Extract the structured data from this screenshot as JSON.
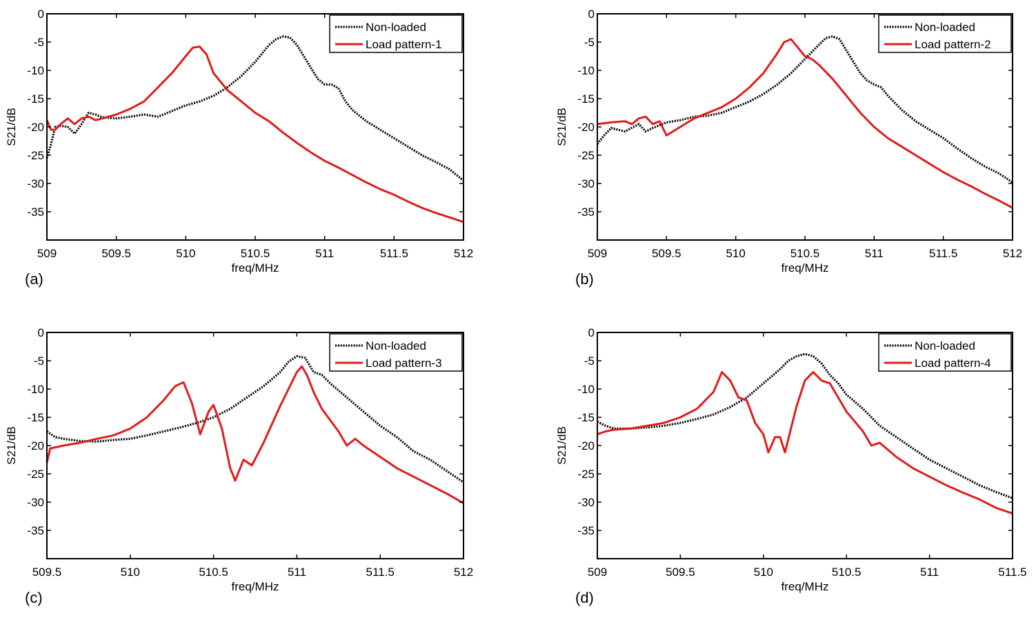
{
  "colors": {
    "non_loaded": "#111111",
    "loaded": "#e01b1b",
    "axis": "#000000"
  },
  "chart_data": [
    {
      "type": "line",
      "panel_label": "(a)",
      "xlabel": "freq/MHz",
      "ylabel": "S21/dB",
      "xlim": [
        509,
        512
      ],
      "ylim": [
        -40,
        0
      ],
      "xticks": [
        509,
        509.5,
        510,
        510.5,
        511,
        511.5,
        512
      ],
      "xtick_labels": [
        "509",
        "509.5",
        "510",
        "510.5",
        "511",
        "511.5",
        "512"
      ],
      "yticks": [
        0,
        -5,
        -10,
        -15,
        -20,
        -25,
        -30,
        -35
      ],
      "ytick_labels": [
        "0",
        "-5",
        "-10",
        "-15",
        "-20",
        "-25",
        "-30",
        "-35"
      ],
      "legend": [
        "Non-loaded",
        "Load pattern-1"
      ],
      "series": [
        {
          "name": "Non-loaded",
          "style": "dotted",
          "x": [
            509,
            509.03,
            509.06,
            509.1,
            509.15,
            509.2,
            509.25,
            509.3,
            509.35,
            509.4,
            509.5,
            509.6,
            509.7,
            509.8,
            509.9,
            510,
            510.1,
            510.2,
            510.3,
            510.4,
            510.5,
            510.6,
            510.65,
            510.7,
            510.75,
            510.8,
            510.85,
            510.9,
            510.95,
            511,
            511.05,
            511.1,
            511.15,
            511.2,
            511.3,
            511.4,
            511.5,
            511.6,
            511.7,
            511.8,
            511.9,
            512
          ],
          "y": [
            -25.5,
            -23,
            -20,
            -19.8,
            -20,
            -21.2,
            -19.5,
            -17.5,
            -17.8,
            -18.3,
            -18.5,
            -18.2,
            -17.8,
            -18.2,
            -17.2,
            -16.2,
            -15.5,
            -14.5,
            -13,
            -11,
            -8.5,
            -5.5,
            -4.5,
            -4,
            -4.2,
            -5.5,
            -7.5,
            -9.5,
            -11.5,
            -12.5,
            -12.5,
            -13.2,
            -15.5,
            -17,
            -19,
            -20.5,
            -22,
            -23.5,
            -25,
            -26.2,
            -27.5,
            -29.5
          ]
        },
        {
          "name": "Load pattern-1",
          "style": "solid",
          "x": [
            509,
            509.03,
            509.06,
            509.1,
            509.15,
            509.2,
            509.25,
            509.3,
            509.35,
            509.4,
            509.5,
            509.6,
            509.7,
            509.8,
            509.9,
            510,
            510.05,
            510.1,
            510.15,
            510.2,
            510.3,
            510.4,
            510.5,
            510.6,
            510.7,
            510.8,
            510.9,
            511,
            511.1,
            511.2,
            511.3,
            511.4,
            511.5,
            511.6,
            511.7,
            511.8,
            511.9,
            512
          ],
          "y": [
            -18.8,
            -20.5,
            -20.5,
            -19.5,
            -18.5,
            -19.5,
            -18.5,
            -18.2,
            -18.8,
            -18.5,
            -17.8,
            -16.8,
            -15.5,
            -13,
            -10.5,
            -7.5,
            -6,
            -5.8,
            -7.2,
            -10.5,
            -13.5,
            -15.5,
            -17.5,
            -19,
            -21,
            -22.8,
            -24.5,
            -26,
            -27.2,
            -28.5,
            -29.8,
            -31,
            -32,
            -33.2,
            -34.3,
            -35.2,
            -36,
            -36.8
          ]
        }
      ]
    },
    {
      "type": "line",
      "panel_label": "(b)",
      "xlabel": "freq/MHz",
      "ylabel": "S21/dB",
      "xlim": [
        509,
        512
      ],
      "ylim": [
        -40,
        0
      ],
      "xticks": [
        509,
        509.5,
        510,
        510.5,
        511,
        511.5,
        512
      ],
      "xtick_labels": [
        "509",
        "509.5",
        "510",
        "510.5",
        "511",
        "511.5",
        "512"
      ],
      "yticks": [
        0,
        -5,
        -10,
        -15,
        -20,
        -25,
        -30,
        -35
      ],
      "ytick_labels": [
        "0",
        "-5",
        "-10",
        "-15",
        "-20",
        "-25",
        "-30",
        "-35"
      ],
      "legend": [
        "Non-loaded",
        "Load pattern-2"
      ],
      "series": [
        {
          "name": "Non-loaded",
          "style": "dotted",
          "x": [
            509,
            509.05,
            509.1,
            509.2,
            509.3,
            509.35,
            509.4,
            509.5,
            509.6,
            509.7,
            509.8,
            509.9,
            510,
            510.1,
            510.2,
            510.3,
            510.4,
            510.5,
            510.6,
            510.65,
            510.7,
            510.75,
            510.8,
            510.85,
            510.9,
            510.95,
            511,
            511.05,
            511.1,
            511.2,
            511.3,
            511.4,
            511.5,
            511.6,
            511.7,
            511.8,
            511.9,
            512
          ],
          "y": [
            -23,
            -21.5,
            -20.2,
            -20.8,
            -19.5,
            -20.8,
            -20.2,
            -19.2,
            -18.8,
            -18.2,
            -18,
            -17.5,
            -16.5,
            -15.5,
            -14.2,
            -12.5,
            -10.5,
            -8,
            -5.5,
            -4.3,
            -4,
            -4.5,
            -6.5,
            -8.5,
            -10.5,
            -11.8,
            -12.5,
            -13,
            -14.5,
            -17,
            -19,
            -20.5,
            -22,
            -23.8,
            -25.5,
            -27,
            -28.2,
            -29.8
          ]
        },
        {
          "name": "Load pattern-2",
          "style": "solid",
          "x": [
            509,
            509.1,
            509.2,
            509.25,
            509.3,
            509.35,
            509.4,
            509.45,
            509.5,
            509.6,
            509.7,
            509.8,
            509.9,
            510,
            510.1,
            510.2,
            510.3,
            510.35,
            510.4,
            510.45,
            510.5,
            510.55,
            510.6,
            510.7,
            510.8,
            510.9,
            511,
            511.1,
            511.2,
            511.3,
            511.4,
            511.5,
            511.6,
            511.7,
            511.8,
            511.9,
            512
          ],
          "y": [
            -19.5,
            -19.2,
            -19,
            -19.5,
            -18.5,
            -18.2,
            -19.5,
            -19,
            -21.5,
            -20,
            -18.5,
            -17.5,
            -16.5,
            -15,
            -13,
            -10.5,
            -7,
            -5,
            -4.5,
            -6,
            -7.5,
            -8,
            -9,
            -11.5,
            -14.5,
            -17.5,
            -20,
            -22,
            -23.5,
            -25,
            -26.5,
            -28,
            -29.3,
            -30.5,
            -31.8,
            -33,
            -34.3
          ]
        }
      ]
    },
    {
      "type": "line",
      "panel_label": "(c)",
      "xlabel": "freq/MHz",
      "ylabel": "S21/dB",
      "xlim": [
        509.5,
        512
      ],
      "ylim": [
        -40,
        0
      ],
      "xticks": [
        509.5,
        510,
        510.5,
        511,
        511.5,
        512
      ],
      "xtick_labels": [
        "509.5",
        "510",
        "510.5",
        "511",
        "511.5",
        "512"
      ],
      "yticks": [
        0,
        -5,
        -10,
        -15,
        -20,
        -25,
        -30,
        -35
      ],
      "ytick_labels": [
        "0",
        "-5",
        "-10",
        "-15",
        "-20",
        "-25",
        "-30",
        "-35"
      ],
      "legend": [
        "Non-loaded",
        "Load pattern-3"
      ],
      "series": [
        {
          "name": "Non-loaded",
          "style": "dotted",
          "x": [
            509.5,
            509.55,
            509.6,
            509.7,
            509.8,
            509.9,
            510,
            510.1,
            510.2,
            510.3,
            510.4,
            510.5,
            510.6,
            510.7,
            510.8,
            510.9,
            510.95,
            511,
            511.05,
            511.1,
            511.15,
            511.2,
            511.3,
            511.4,
            511.5,
            511.6,
            511.7,
            511.8,
            511.9,
            512
          ],
          "y": [
            -17.5,
            -18.5,
            -18.8,
            -19.2,
            -19.3,
            -19,
            -18.8,
            -18.2,
            -17.5,
            -16.8,
            -16,
            -15,
            -13.5,
            -11.5,
            -9.5,
            -7,
            -5.2,
            -4.2,
            -4.5,
            -7,
            -7.5,
            -9,
            -11.5,
            -14,
            -16.5,
            -18.5,
            -21,
            -22.5,
            -24.5,
            -26.5
          ]
        },
        {
          "name": "Load pattern-3",
          "style": "solid",
          "x": [
            509.5,
            509.52,
            509.6,
            509.7,
            509.8,
            509.9,
            510,
            510.1,
            510.2,
            510.27,
            510.32,
            510.37,
            510.42,
            510.47,
            510.5,
            510.55,
            510.6,
            510.63,
            510.68,
            510.73,
            510.8,
            510.9,
            511,
            511.03,
            511.06,
            511.1,
            511.15,
            511.2,
            511.25,
            511.3,
            511.35,
            511.4,
            511.5,
            511.6,
            511.7,
            511.8,
            511.9,
            512
          ],
          "y": [
            -23,
            -20.5,
            -20,
            -19.5,
            -18.8,
            -18.2,
            -17,
            -15,
            -12,
            -9.5,
            -8.8,
            -12.5,
            -18,
            -14,
            -12.8,
            -17,
            -24,
            -26.2,
            -22.5,
            -23.5,
            -19.5,
            -13,
            -7,
            -6,
            -7.5,
            -10.5,
            -13.5,
            -15.5,
            -17.5,
            -20,
            -18.8,
            -20,
            -22,
            -24,
            -25.5,
            -27,
            -28.5,
            -30.2
          ]
        }
      ]
    },
    {
      "type": "line",
      "panel_label": "(d)",
      "xlabel": "freq/MHz",
      "ylabel": "S21/dB",
      "xlim": [
        509,
        511.5
      ],
      "ylim": [
        -40,
        0
      ],
      "xticks": [
        509,
        509.5,
        510,
        510.5,
        511,
        511.5
      ],
      "xtick_labels": [
        "509",
        "509.5",
        "510",
        "510.5",
        "511",
        "511.5"
      ],
      "yticks": [
        0,
        -5,
        -10,
        -15,
        -20,
        -25,
        -30,
        -35
      ],
      "ytick_labels": [
        "0",
        "-5",
        "-10",
        "-15",
        "-20",
        "-25",
        "-30",
        "-35"
      ],
      "legend": [
        "Non-loaded",
        "Load pattern-4"
      ],
      "series": [
        {
          "name": "Non-loaded",
          "style": "dotted",
          "x": [
            509,
            509.05,
            509.1,
            509.2,
            509.3,
            509.4,
            509.5,
            509.6,
            509.7,
            509.8,
            509.9,
            510,
            510.1,
            510.15,
            510.2,
            510.25,
            510.3,
            510.35,
            510.4,
            510.45,
            510.5,
            510.6,
            510.7,
            510.8,
            510.9,
            511,
            511.1,
            511.2,
            511.3,
            511.4,
            511.5
          ],
          "y": [
            -15.8,
            -16.5,
            -17,
            -17,
            -16.8,
            -16.5,
            -16,
            -15.3,
            -14.5,
            -13.2,
            -11.5,
            -9,
            -6.5,
            -5,
            -4.2,
            -3.8,
            -4.2,
            -5.5,
            -7.5,
            -9,
            -11,
            -13.5,
            -16.5,
            -18.5,
            -20.5,
            -22.5,
            -24,
            -25.5,
            -27,
            -28.2,
            -29.3
          ]
        },
        {
          "name": "Load pattern-4",
          "style": "solid",
          "x": [
            509,
            509.05,
            509.1,
            509.2,
            509.3,
            509.4,
            509.5,
            509.6,
            509.7,
            509.75,
            509.8,
            509.85,
            509.9,
            509.95,
            510,
            510.03,
            510.07,
            510.1,
            510.13,
            510.2,
            510.25,
            510.3,
            510.35,
            510.4,
            510.45,
            510.5,
            510.6,
            510.65,
            510.7,
            510.8,
            510.9,
            511,
            511.1,
            511.2,
            511.3,
            511.4,
            511.5
          ],
          "y": [
            -18,
            -17.5,
            -17.2,
            -17,
            -16.5,
            -16,
            -15,
            -13.5,
            -10.5,
            -7,
            -8.5,
            -11.5,
            -12,
            -16,
            -18,
            -21.2,
            -18.5,
            -18.5,
            -21.2,
            -13,
            -8.5,
            -7,
            -8.5,
            -9,
            -11.5,
            -14,
            -17.5,
            -20,
            -19.5,
            -22,
            -24,
            -25.5,
            -27,
            -28.3,
            -29.5,
            -31,
            -32
          ]
        }
      ]
    }
  ]
}
